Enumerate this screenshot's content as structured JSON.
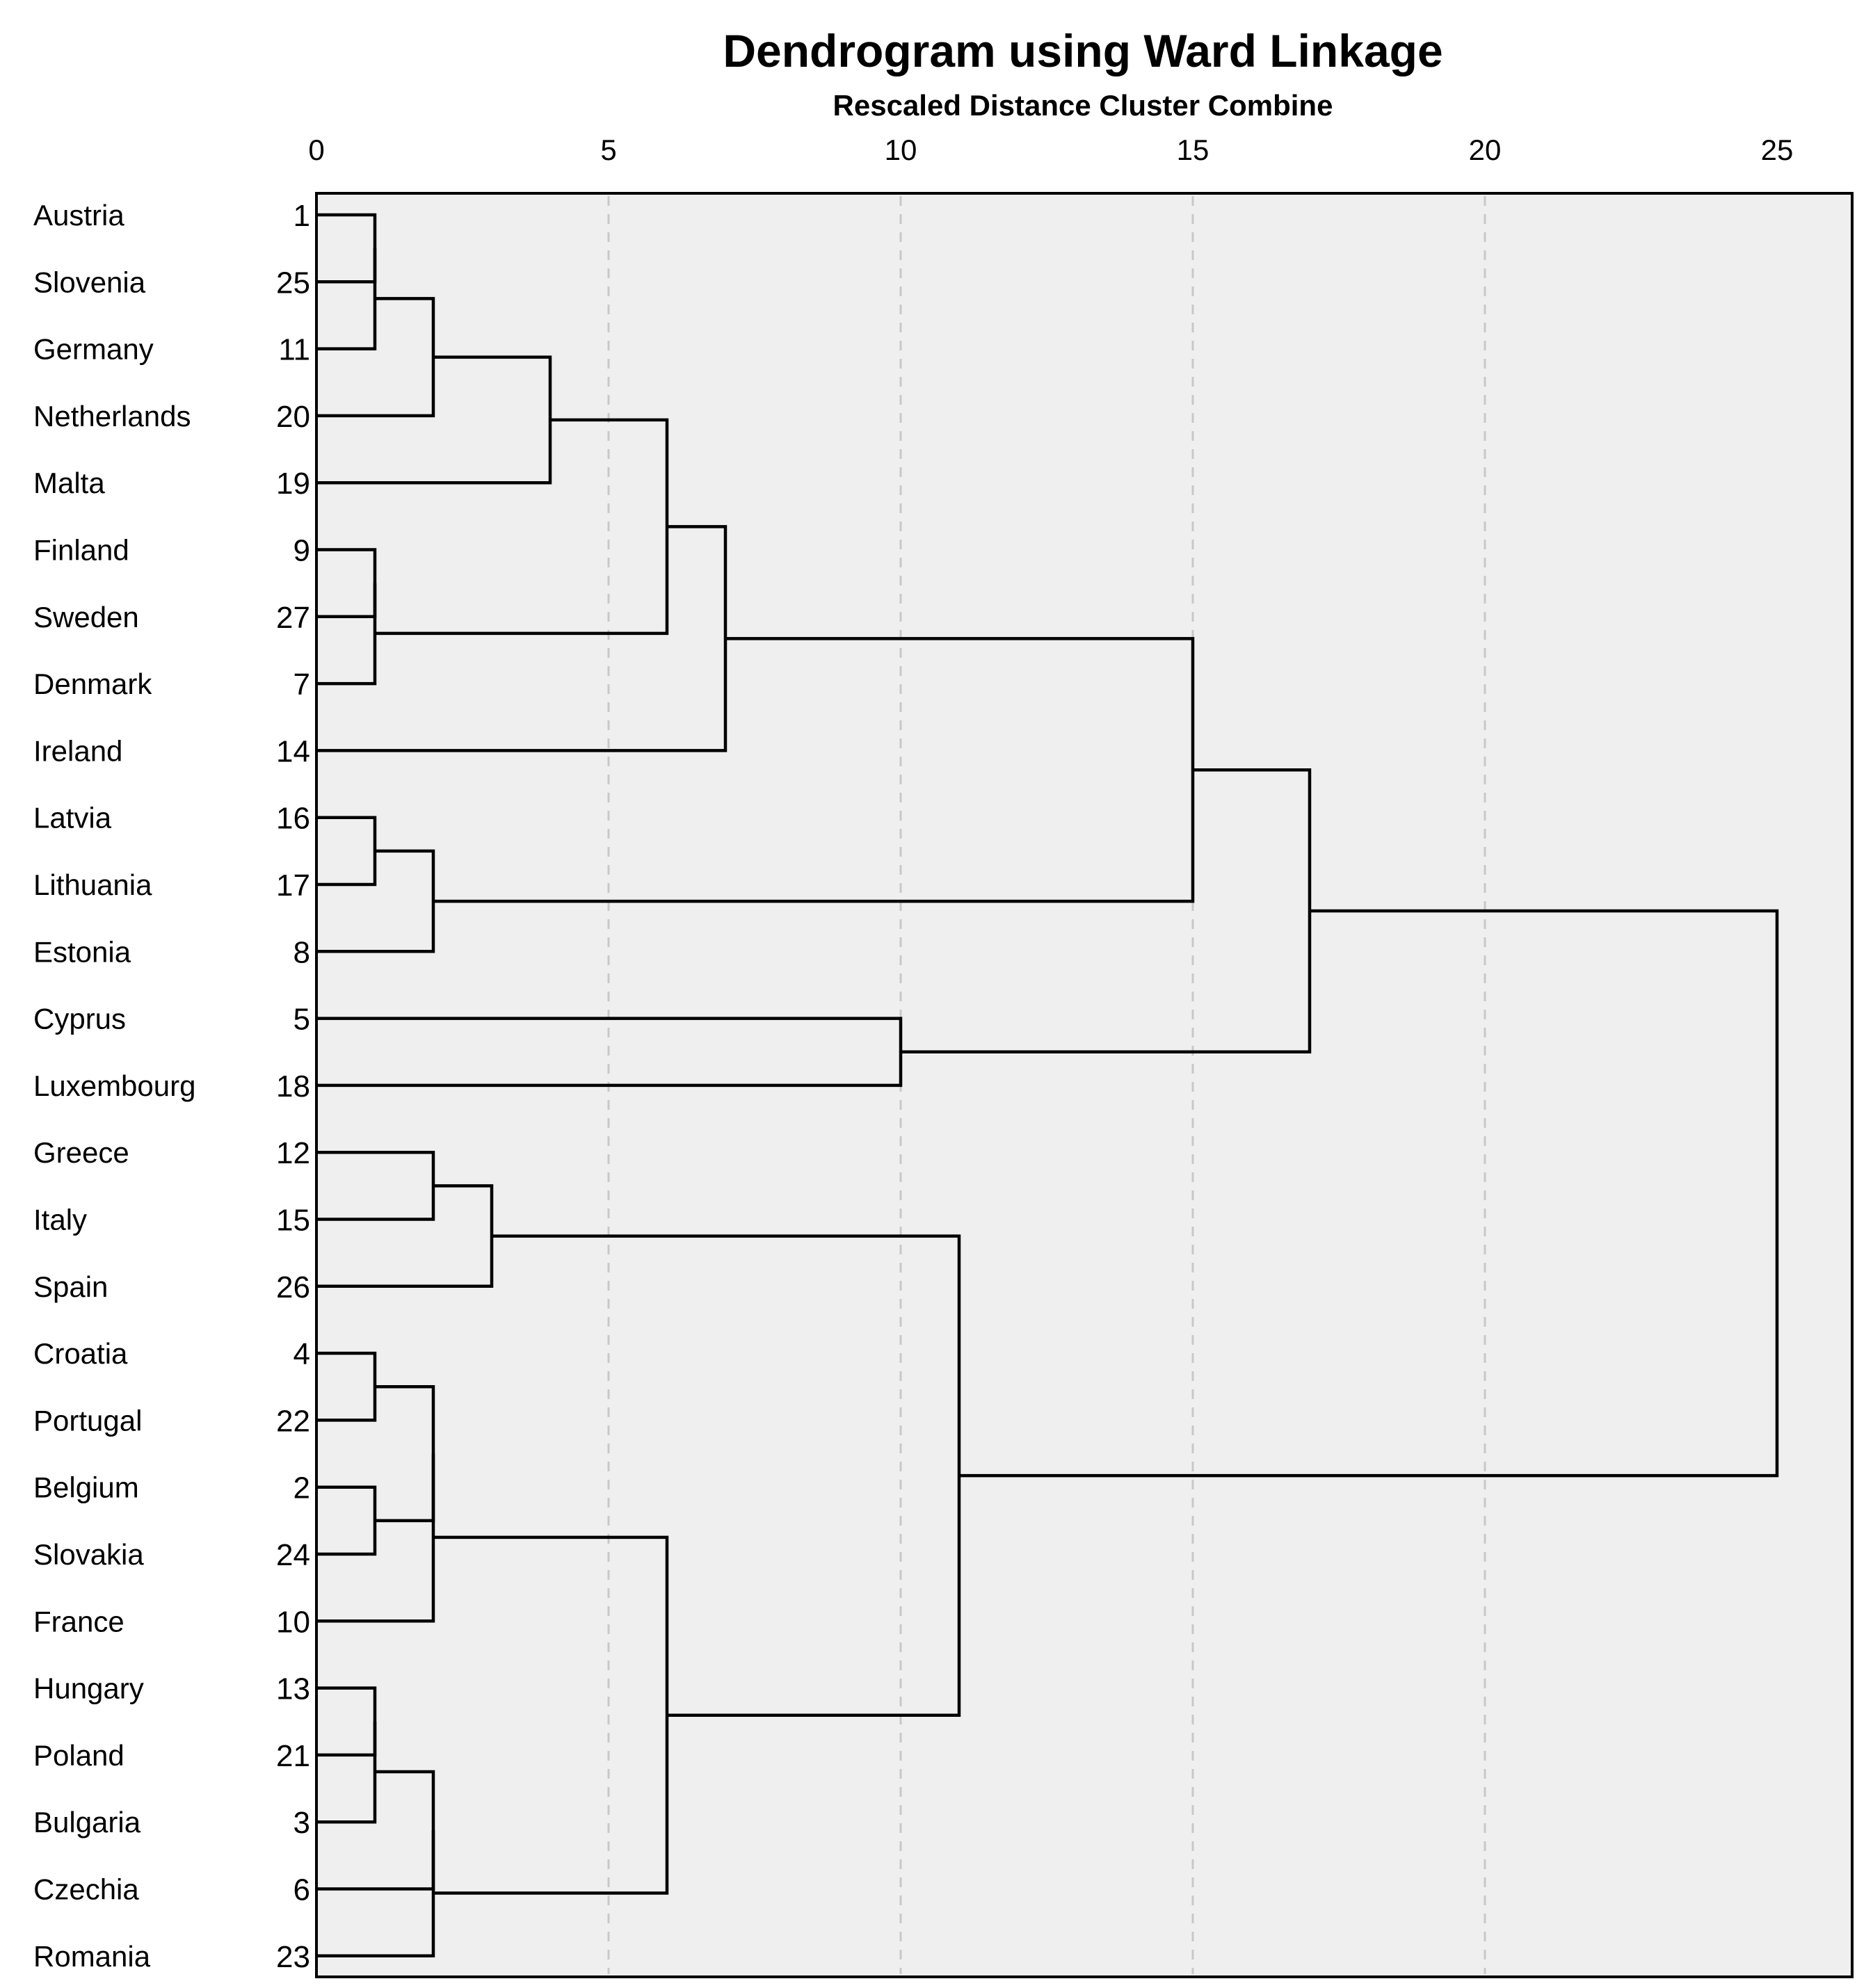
{
  "chart_data": {
    "type": "dendrogram",
    "title": "Dendrogram using Ward Linkage",
    "subtitle": "Rescaled Distance Cluster Combine",
    "xlim": [
      0,
      25
    ],
    "xticks": [
      "0",
      "5",
      "10",
      "15",
      "20",
      "25"
    ],
    "grid": true,
    "leaves": [
      {
        "name": "Austria",
        "id": "1"
      },
      {
        "name": "Slovenia",
        "id": "25"
      },
      {
        "name": "Germany",
        "id": "11"
      },
      {
        "name": "Netherlands",
        "id": "20"
      },
      {
        "name": "Malta",
        "id": "19"
      },
      {
        "name": "Finland",
        "id": "9"
      },
      {
        "name": "Sweden",
        "id": "27"
      },
      {
        "name": "Denmark",
        "id": "7"
      },
      {
        "name": "Ireland",
        "id": "14"
      },
      {
        "name": "Latvia",
        "id": "16"
      },
      {
        "name": "Lithuania",
        "id": "17"
      },
      {
        "name": "Estonia",
        "id": "8"
      },
      {
        "name": "Cyprus",
        "id": "5"
      },
      {
        "name": "Luxembourg",
        "id": "18"
      },
      {
        "name": "Greece",
        "id": "12"
      },
      {
        "name": "Italy",
        "id": "15"
      },
      {
        "name": "Spain",
        "id": "26"
      },
      {
        "name": "Croatia",
        "id": "4"
      },
      {
        "name": "Portugal",
        "id": "22"
      },
      {
        "name": "Belgium",
        "id": "2"
      },
      {
        "name": "Slovakia",
        "id": "24"
      },
      {
        "name": "France",
        "id": "10"
      },
      {
        "name": "Hungary",
        "id": "13"
      },
      {
        "name": "Poland",
        "id": "21"
      },
      {
        "name": "Bulgaria",
        "id": "3"
      },
      {
        "name": "Czechia",
        "id": "6"
      },
      {
        "name": "Romania",
        "id": "23"
      }
    ],
    "merges": [
      {
        "children": [
          [
            0,
            0
          ],
          [
            0,
            1
          ]
        ],
        "distance": 1
      },
      {
        "children": [
          [
            1,
            0
          ],
          [
            0,
            2
          ]
        ],
        "distance": 1
      },
      {
        "children": [
          [
            1,
            1
          ],
          [
            0,
            3
          ]
        ],
        "distance": 2
      },
      {
        "children": [
          [
            1,
            2
          ],
          [
            0,
            4
          ]
        ],
        "distance": 4
      },
      {
        "children": [
          [
            0,
            5
          ],
          [
            0,
            6
          ]
        ],
        "distance": 1
      },
      {
        "children": [
          [
            1,
            4
          ],
          [
            0,
            7
          ]
        ],
        "distance": 1
      },
      {
        "children": [
          [
            1,
            3
          ],
          [
            1,
            5
          ]
        ],
        "distance": 6
      },
      {
        "children": [
          [
            1,
            6
          ],
          [
            0,
            8
          ]
        ],
        "distance": 7
      },
      {
        "children": [
          [
            0,
            9
          ],
          [
            0,
            10
          ]
        ],
        "distance": 1
      },
      {
        "children": [
          [
            1,
            8
          ],
          [
            0,
            11
          ]
        ],
        "distance": 2
      },
      {
        "children": [
          [
            1,
            7
          ],
          [
            1,
            9
          ]
        ],
        "distance": 15
      },
      {
        "children": [
          [
            0,
            12
          ],
          [
            0,
            13
          ]
        ],
        "distance": 10
      },
      {
        "children": [
          [
            1,
            10
          ],
          [
            1,
            11
          ]
        ],
        "distance": 17
      },
      {
        "children": [
          [
            0,
            14
          ],
          [
            0,
            15
          ]
        ],
        "distance": 2
      },
      {
        "children": [
          [
            1,
            13
          ],
          [
            0,
            16
          ]
        ],
        "distance": 3
      },
      {
        "children": [
          [
            0,
            17
          ],
          [
            0,
            18
          ]
        ],
        "distance": 1
      },
      {
        "children": [
          [
            0,
            19
          ],
          [
            0,
            20
          ]
        ],
        "distance": 1
      },
      {
        "children": [
          [
            1,
            15
          ],
          [
            1,
            16
          ]
        ],
        "distance": 2
      },
      {
        "children": [
          [
            1,
            17
          ],
          [
            0,
            21
          ]
        ],
        "distance": 2
      },
      {
        "children": [
          [
            0,
            22
          ],
          [
            0,
            23
          ]
        ],
        "distance": 1
      },
      {
        "children": [
          [
            1,
            19
          ],
          [
            0,
            24
          ]
        ],
        "distance": 1
      },
      {
        "children": [
          [
            1,
            20
          ],
          [
            0,
            25
          ]
        ],
        "distance": 2
      },
      {
        "children": [
          [
            1,
            21
          ],
          [
            0,
            26
          ]
        ],
        "distance": 2
      },
      {
        "children": [
          [
            1,
            18
          ],
          [
            1,
            22
          ]
        ],
        "distance": 6
      },
      {
        "children": [
          [
            1,
            14
          ],
          [
            1,
            23
          ]
        ],
        "distance": 11
      },
      {
        "children": [
          [
            1,
            12
          ],
          [
            1,
            24
          ]
        ],
        "distance": 25
      }
    ]
  }
}
